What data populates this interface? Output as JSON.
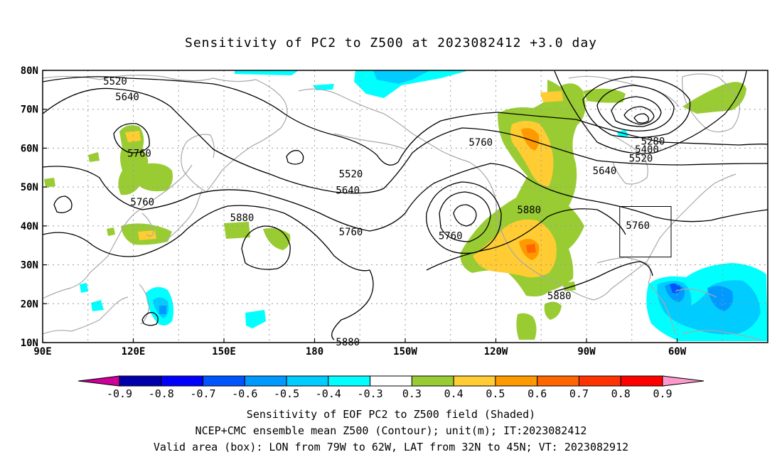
{
  "title": "Sensitivity of PC2 to Z500 at 2023082412 +3.0 day",
  "map": {
    "lat_labels": [
      "80N",
      "70N",
      "60N",
      "50N",
      "40N",
      "30N",
      "20N",
      "10N"
    ],
    "lon_labels": [
      "90E",
      "120E",
      "150E",
      "180",
      "150W",
      "120W",
      "90W",
      "60W"
    ],
    "contour_labels": [
      {
        "text": "5520",
        "lon": 114,
        "lat": 77.3
      },
      {
        "text": "5640",
        "lon": 118,
        "lat": 73.2
      },
      {
        "text": "5760",
        "lon": 122,
        "lat": 58.7
      },
      {
        "text": "5760",
        "lon": 123,
        "lat": 46.2
      },
      {
        "text": "5880",
        "lon": 156,
        "lat": 42.2
      },
      {
        "text": "5520",
        "lon": 192,
        "lat": 53.4
      },
      {
        "text": "5640",
        "lon": 191,
        "lat": 49.2
      },
      {
        "text": "5760",
        "lon": 192,
        "lat": 38.5
      },
      {
        "text": "5760",
        "lon": 225,
        "lat": 37.5
      },
      {
        "text": "5760",
        "lon": 235,
        "lat": 61.5
      },
      {
        "text": "5880",
        "lon": 251,
        "lat": 44.2
      },
      {
        "text": "5880",
        "lon": 191,
        "lat": 10.2
      },
      {
        "text": "5880",
        "lon": 261,
        "lat": 22.1
      },
      {
        "text": "5280",
        "lon": 292,
        "lat": 61.8
      },
      {
        "text": "5400",
        "lon": 290,
        "lat": 59.7
      },
      {
        "text": "5520",
        "lon": 288,
        "lat": 57.4
      },
      {
        "text": "5640",
        "lon": 276,
        "lat": 54.2
      },
      {
        "text": "5760",
        "lon": 287,
        "lat": 40.2
      }
    ],
    "valid_box": {
      "lon_from": 281,
      "lon_to": 298,
      "lat_from": 32,
      "lat_to": 45
    }
  },
  "colorbar": {
    "labels": [
      "-0.9",
      "-0.8",
      "-0.7",
      "-0.6",
      "-0.5",
      "-0.4",
      "-0.3",
      "0.3",
      "0.4",
      "0.5",
      "0.6",
      "0.7",
      "0.8",
      "0.9"
    ],
    "colors": [
      "#cc0099",
      "#0000aa",
      "#0000ff",
      "#0055ff",
      "#0099ff",
      "#00ccff",
      "#00ffff",
      "#ffffff",
      "#99cc33",
      "#ffcc33",
      "#ff9900",
      "#ff6600",
      "#ff3300",
      "#ff0000",
      "#ff99cc"
    ],
    "shade_colors": {
      "negative_light": "#00ffff",
      "negative_mid": "#00ccff",
      "negative_deep": "#0099ff",
      "negative_deeper": "#0055ff",
      "positive_light": "#99cc33",
      "positive_mid": "#ffcc33",
      "positive_deep": "#ff9900"
    }
  },
  "captions": {
    "line1": "Sensitivity of EOF PC2 to Z500 field (Shaded)",
    "line2": "NCEP+CMC ensemble mean Z500 (Contour); unit(m); IT:2023082412",
    "line3": "Valid area (box): LON from 79W to 62W, LAT from 32N to 45N; VT: 2023082912"
  }
}
